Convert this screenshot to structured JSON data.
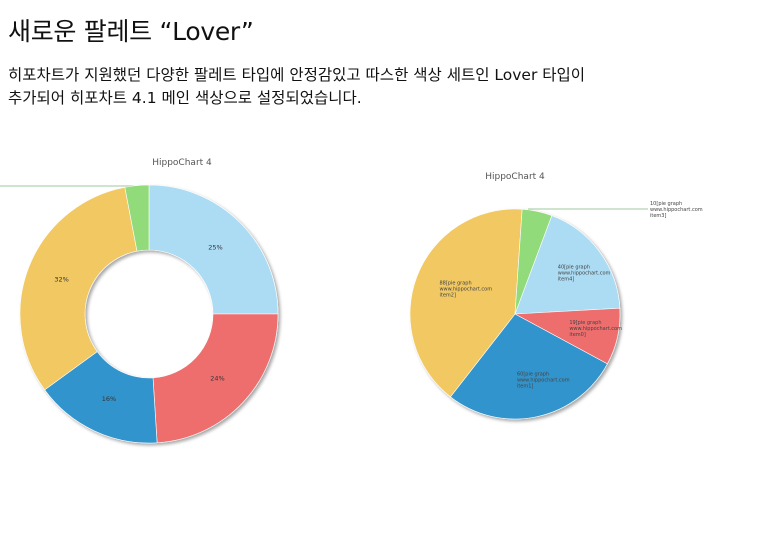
{
  "page": {
    "title": "새로운 팔레트 “Lover”",
    "description_line1": "히포차트가 지원했던 다양한 팔레트 타입에 안정감있고 따스한 색상 세트인 Lover 타입이",
    "description_line2": "추가되어 히포차트 4.1 메인 색상으로 설정되었습니다."
  },
  "palette": {
    "blue": "#3294cc",
    "red": "#ee6e6e",
    "yellow": "#f1c862",
    "light_blue": "#abdcf4",
    "green": "#92db7a"
  },
  "chart_data": [
    {
      "type": "pie",
      "variant": "donut",
      "title": "HippoChart 4",
      "slices": [
        {
          "value": 25,
          "label": "25%",
          "color": "#abdcf4"
        },
        {
          "value": 24,
          "label": "24%",
          "color": "#ee6e6e"
        },
        {
          "value": 16,
          "label": "16%",
          "color": "#3294cc"
        },
        {
          "value": 32,
          "label": "32%",
          "color": "#f1c862"
        },
        {
          "value": 3,
          "label": "",
          "color": "#92db7a"
        }
      ]
    },
    {
      "type": "pie",
      "title": "HippoChart 4",
      "slices": [
        {
          "value": 40,
          "label_lines": [
            "40[pie graph",
            "www.hippochart.com",
            "item4]"
          ],
          "color": "#abdcf4"
        },
        {
          "value": 19,
          "label_lines": [
            "19[pie graph",
            "www.hippochart.com",
            "item0]"
          ],
          "color": "#ee6e6e"
        },
        {
          "value": 60,
          "label_lines": [
            "60[pie graph",
            "www.hippochart.com",
            "item1]"
          ],
          "color": "#3294cc"
        },
        {
          "value": 88,
          "label_lines": [
            "88[pie graph",
            "www.hippochart.com",
            "item2]"
          ],
          "color": "#f1c862"
        },
        {
          "value": 10,
          "label_lines": [
            "10[pie graph",
            "www.hippochart.com",
            "item3]"
          ],
          "color": "#92db7a"
        }
      ]
    }
  ]
}
